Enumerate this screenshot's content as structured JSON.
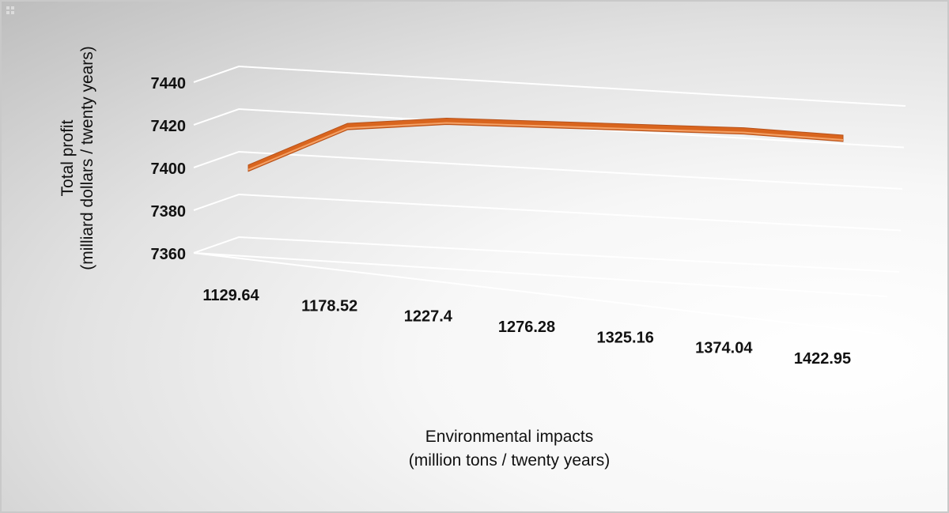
{
  "chart_data": {
    "type": "line",
    "style": "3d-ribbon",
    "x": [
      "1129.64",
      "1178.52",
      "1227.4",
      "1276.28",
      "1325.16",
      "1374.04",
      "1422.95"
    ],
    "values": [
      7399,
      7420,
      7424,
      7424,
      7424,
      7424,
      7422
    ],
    "y_ticks": [
      "7360",
      "7380",
      "7400",
      "7420",
      "7440"
    ],
    "ylim": [
      7360,
      7440
    ],
    "ylabel": [
      "Total profit",
      "(milliard dollars / twenty years)"
    ],
    "xlabel": [
      "Environmental impacts",
      "(million tons / twenty years)"
    ],
    "grid": true,
    "line_color": "#d9651e",
    "line_highlight": "#f2a066"
  }
}
